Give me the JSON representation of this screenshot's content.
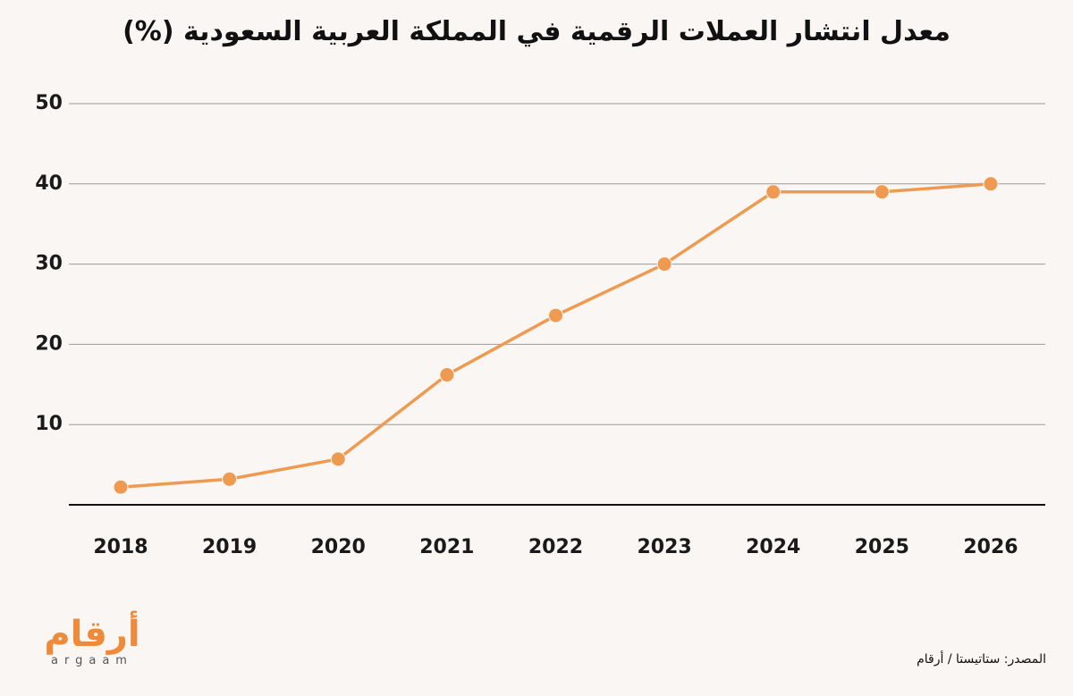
{
  "chart_data": {
    "type": "line",
    "title": "معدل انتشار العملات الرقمية في المملكة العربية السعودية (%)",
    "xlabel": "",
    "ylabel": "",
    "x": [
      "2018",
      "2019",
      "2020",
      "2021",
      "2022",
      "2023",
      "2024",
      "2025",
      "2026"
    ],
    "series": [
      {
        "values": [
          2.2,
          3.2,
          5.7,
          16.2,
          23.6,
          30.0,
          39.0,
          39.0,
          40.0
        ]
      }
    ],
    "yticks": [
      "10",
      "20",
      "30",
      "40",
      "50"
    ],
    "ylim": [
      0,
      50
    ],
    "grid": true,
    "legend": "none",
    "color": "#ee9a50"
  },
  "branding": {
    "logo_ar": "أرقام",
    "logo_en": "argaam"
  },
  "source": "المصدر: ستاتيستا / أرقام"
}
